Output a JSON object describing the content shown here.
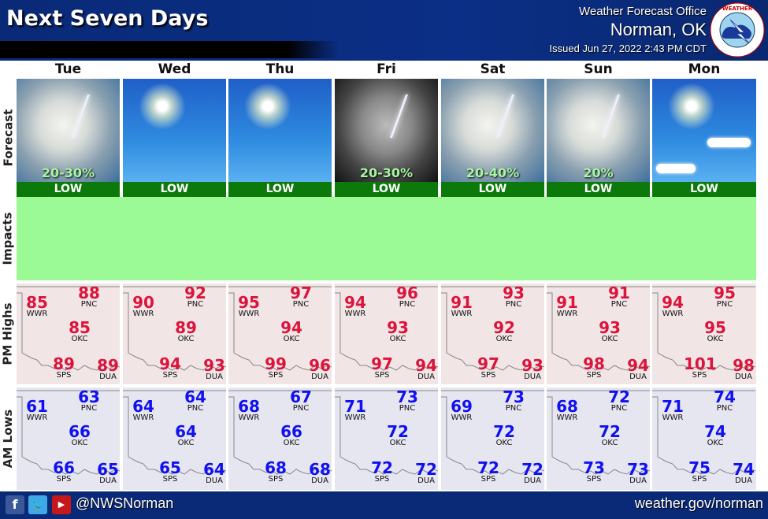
{
  "header": {
    "title": "Next Seven Days",
    "office_label": "Weather Forecast Office",
    "office_city": "Norman, OK",
    "issued": "Issued Jun 27, 2022 2:43 PM CDT",
    "logo_text": "NATIONAL WEATHER SERVICE"
  },
  "row_labels": {
    "forecast": "Forecast",
    "impacts": "Impacts",
    "highs": "PM Highs",
    "lows": "AM Lows"
  },
  "stations": [
    "WWR",
    "PNC",
    "OKC",
    "SPS",
    "DUA"
  ],
  "days": [
    {
      "name": "Tue",
      "icon": "thunderstorm",
      "precip": "20-30%",
      "impact": "LOW",
      "highs": {
        "WWR": "85",
        "PNC": "88",
        "OKC": "85",
        "SPS": "89",
        "DUA": "89"
      },
      "lows": {
        "WWR": "61",
        "PNC": "63",
        "OKC": "66",
        "SPS": "66",
        "DUA": "65"
      }
    },
    {
      "name": "Wed",
      "icon": "sunny",
      "precip": "",
      "impact": "LOW",
      "highs": {
        "WWR": "90",
        "PNC": "92",
        "OKC": "89",
        "SPS": "94",
        "DUA": "93"
      },
      "lows": {
        "WWR": "64",
        "PNC": "64",
        "OKC": "64",
        "SPS": "65",
        "DUA": "64"
      }
    },
    {
      "name": "Thu",
      "icon": "sunny",
      "precip": "",
      "impact": "LOW",
      "highs": {
        "WWR": "95",
        "PNC": "97",
        "OKC": "94",
        "SPS": "99",
        "DUA": "96"
      },
      "lows": {
        "WWR": "68",
        "PNC": "67",
        "OKC": "66",
        "SPS": "68",
        "DUA": "68"
      }
    },
    {
      "name": "Fri",
      "icon": "thunderstorm-night",
      "precip": "20-30%",
      "impact": "LOW",
      "highs": {
        "WWR": "94",
        "PNC": "96",
        "OKC": "93",
        "SPS": "97",
        "DUA": "94"
      },
      "lows": {
        "WWR": "71",
        "PNC": "73",
        "OKC": "72",
        "SPS": "72",
        "DUA": "72"
      }
    },
    {
      "name": "Sat",
      "icon": "thunderstorm",
      "precip": "20-40%",
      "impact": "LOW",
      "highs": {
        "WWR": "91",
        "PNC": "93",
        "OKC": "92",
        "SPS": "97",
        "DUA": "93"
      },
      "lows": {
        "WWR": "69",
        "PNC": "73",
        "OKC": "72",
        "SPS": "72",
        "DUA": "72"
      }
    },
    {
      "name": "Sun",
      "icon": "thunderstorm",
      "precip": "20%",
      "impact": "LOW",
      "highs": {
        "WWR": "91",
        "PNC": "91",
        "OKC": "93",
        "SPS": "98",
        "DUA": "94"
      },
      "lows": {
        "WWR": "68",
        "PNC": "72",
        "OKC": "72",
        "SPS": "73",
        "DUA": "73"
      }
    },
    {
      "name": "Mon",
      "icon": "mostly-sunny",
      "precip": "",
      "impact": "LOW",
      "highs": {
        "WWR": "94",
        "PNC": "95",
        "OKC": "95",
        "SPS": "101",
        "DUA": "98"
      },
      "lows": {
        "WWR": "71",
        "PNC": "74",
        "OKC": "74",
        "SPS": "75",
        "DUA": "74"
      }
    }
  ],
  "colors": {
    "header": "#0a2a78",
    "impact_low": "#0b7a0b",
    "impacts_bg": "#9cfa96",
    "high_temp": "#dc143c",
    "low_temp": "#1010f0",
    "high_bg": "#f1e5e5",
    "low_bg": "#e6e6f1"
  },
  "footer": {
    "social": [
      "facebook-icon",
      "twitter-icon",
      "youtube-icon"
    ],
    "handle": "@NWSNorman",
    "website": "weather.gov/norman"
  }
}
